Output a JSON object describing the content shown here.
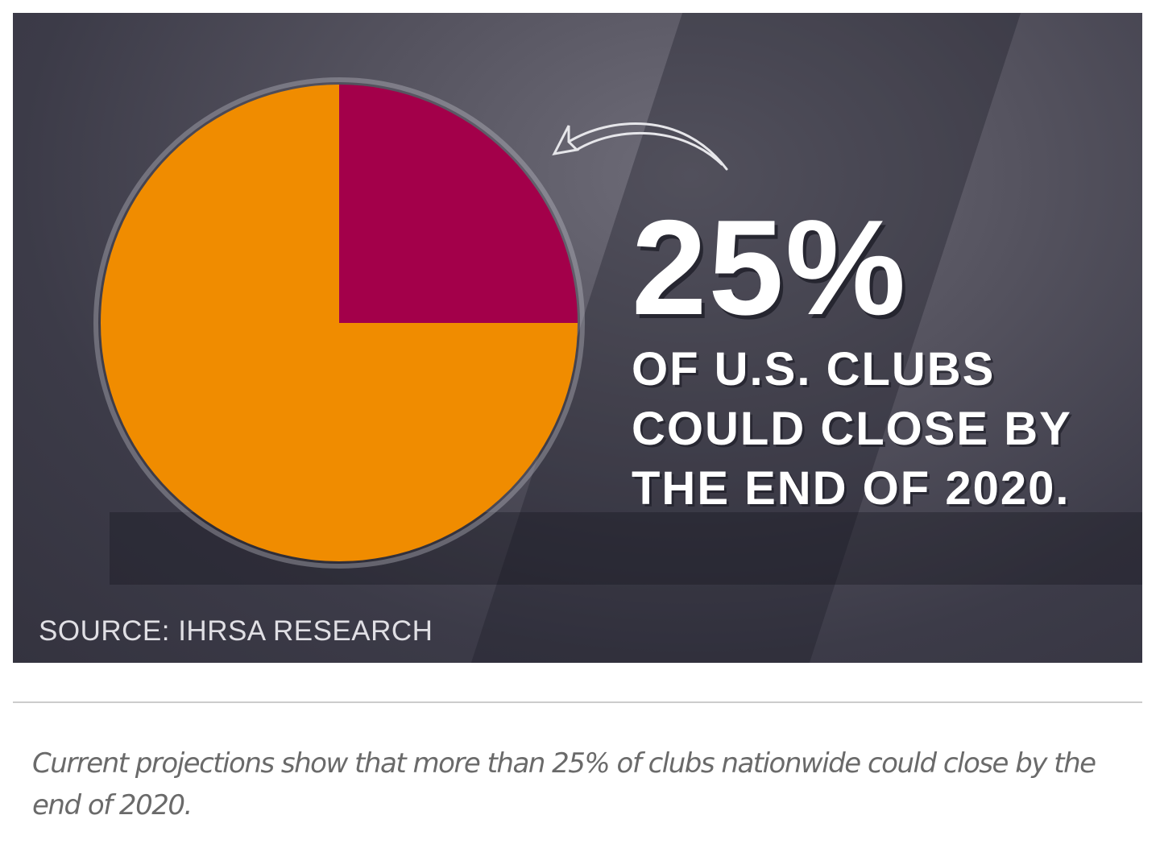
{
  "chart_data": {
    "type": "pie",
    "slices": [
      {
        "value": 25,
        "color": "#a3004a"
      },
      {
        "value": 75,
        "color": "#f08c00"
      }
    ],
    "start_angle": "12 o'clock",
    "direction": "clockwise"
  },
  "headline": {
    "value": "25%",
    "lines": [
      "OF U.S. CLUBS",
      "COULD CLOSE BY",
      "THE END OF 2020."
    ]
  },
  "source": "SOURCE: IHRSA RESEARCH",
  "caption": "Current projections show that more than 25% of clubs nationwide could close by the end of 2020."
}
